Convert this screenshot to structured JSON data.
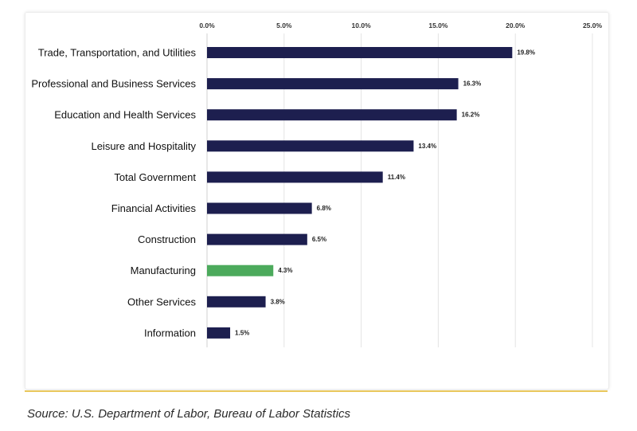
{
  "source_note": "Source: U.S. Department of Labor, Bureau of Labor Statistics",
  "chart_data": {
    "type": "bar",
    "orientation": "horizontal",
    "title": "",
    "xlabel": "",
    "ylabel": "",
    "xlim": [
      0,
      25
    ],
    "x_ticks": [
      "0.0%",
      "5.0%",
      "10.0%",
      "15.0%",
      "20.0%",
      "25.0%"
    ],
    "x_tick_values": [
      0,
      5,
      10,
      15,
      20,
      25
    ],
    "x_axis_position": "top",
    "grid": "vertical",
    "legend": "none",
    "categories": [
      "Trade, Transportation, and Utilities",
      "Professional and Business Services",
      "Education and Health Services",
      "Leisure and Hospitality",
      "Total Government",
      "Financial Activities",
      "Construction",
      "Manufacturing",
      "Other Services",
      "Information"
    ],
    "values": [
      19.8,
      16.3,
      16.2,
      13.4,
      11.4,
      6.8,
      6.5,
      4.3,
      3.8,
      1.5
    ],
    "value_labels": [
      "19.8%",
      "16.3%",
      "16.2%",
      "13.4%",
      "11.4%",
      "6.8%",
      "6.5%",
      "4.3%",
      "3.8%",
      "1.5%"
    ],
    "bar_color": "#1d1f4f",
    "highlight_category": "Manufacturing",
    "highlight_color": "#4caa5c",
    "grid_color": "#e4e4e4",
    "accent_color": "#e9c75c"
  }
}
